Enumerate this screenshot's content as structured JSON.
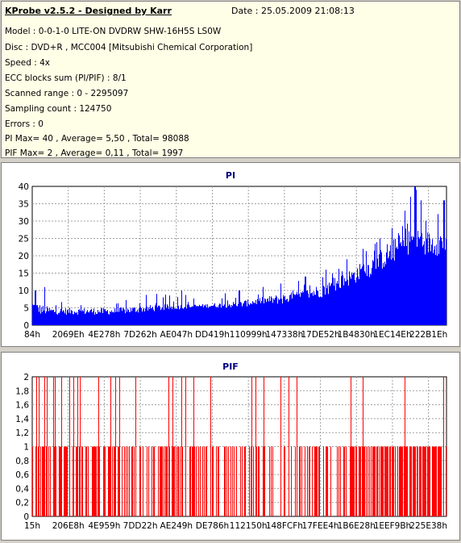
{
  "header": {
    "title": "KProbe v2.5.2 - Designed by Karr",
    "date": "Date : 25.05.2009 21:08:13",
    "lines": [
      "Model : 0-0-1-0 LITE-ON DVDRW SHW-16H5S  LS0W",
      "Disc : DVD+R , MCC004 [Mitsubishi Chemical Corporation]",
      "Speed : 4x",
      "ECC blocks sum (PI/PIF) : 8/1",
      "Scanned range : 0 - 2295097",
      "Sampling count : 124750",
      "Errors : 0",
      "PI Max= 40 , Average= 5,50 , Total= 98088",
      "PIF Max= 2 , Average= 0,11 , Total= 1997"
    ]
  },
  "chart_data": [
    {
      "type": "bar",
      "title": "PI",
      "color": "#0000ff",
      "ylim": [
        0,
        40
      ],
      "yticks": [
        "0",
        "5",
        "10",
        "15",
        "20",
        "25",
        "30",
        "35",
        "40"
      ],
      "yvalues": [
        0,
        5,
        10,
        15,
        20,
        25,
        30,
        35,
        40
      ],
      "xticks": [
        "84h",
        "2069Eh",
        "4E278h",
        "7D262h",
        "AE047h",
        "DD419h",
        "110999h",
        "147338h",
        "17DE52h",
        "1B4830h",
        "1EC14Eh",
        "222B1Eh"
      ],
      "grid": true,
      "envelope": [
        [
          0,
          7,
          4
        ],
        [
          0.02,
          6,
          3
        ],
        [
          0.05,
          5,
          3
        ],
        [
          0.1,
          5,
          3
        ],
        [
          0.2,
          5,
          3
        ],
        [
          0.3,
          6,
          4
        ],
        [
          0.4,
          6,
          5
        ],
        [
          0.5,
          7,
          5
        ],
        [
          0.55,
          8,
          6
        ],
        [
          0.6,
          9,
          6
        ],
        [
          0.65,
          10,
          7
        ],
        [
          0.7,
          12,
          8
        ],
        [
          0.74,
          14,
          10
        ],
        [
          0.78,
          17,
          12
        ],
        [
          0.82,
          20,
          14
        ],
        [
          0.86,
          24,
          17
        ],
        [
          0.9,
          27,
          20
        ],
        [
          0.93,
          29,
          21
        ],
        [
          0.96,
          27,
          20
        ],
        [
          1.0,
          28,
          20
        ]
      ],
      "peaks": [
        [
          0.03,
          11
        ],
        [
          0.007,
          10
        ],
        [
          0.3,
          9
        ],
        [
          0.36,
          10
        ],
        [
          0.5,
          10
        ],
        [
          0.6,
          12
        ],
        [
          0.66,
          14
        ],
        [
          0.71,
          16
        ],
        [
          0.76,
          19
        ],
        [
          0.8,
          22
        ],
        [
          0.84,
          25
        ],
        [
          0.87,
          28
        ],
        [
          0.9,
          33
        ],
        [
          0.915,
          37
        ],
        [
          0.925,
          40
        ],
        [
          0.928,
          39
        ],
        [
          0.94,
          36
        ],
        [
          0.98,
          32
        ],
        [
          0.995,
          36
        ]
      ]
    },
    {
      "type": "bar",
      "title": "PIF",
      "color": "#ff0000",
      "ylim": [
        0,
        2
      ],
      "yticks": [
        "0",
        "0,2",
        "0,4",
        "0,6",
        "0,8",
        "1",
        "1,2",
        "1,4",
        "1,6",
        "1,8",
        "2"
      ],
      "yvalues": [
        0,
        0.2,
        0.4,
        0.6,
        0.8,
        1,
        1.2,
        1.4,
        1.6,
        1.8,
        2
      ],
      "xticks": [
        "15h",
        "206E8h",
        "4E959h",
        "7DD22h",
        "AE249h",
        "DE786h",
        "112150h",
        "148FCFh",
        "17FEE4h",
        "1B6E28h",
        "1EEF9Bh",
        "225E38h"
      ],
      "grid": true,
      "density": [
        [
          0.0,
          0.6
        ],
        [
          0.1,
          0.5
        ],
        [
          0.2,
          0.45
        ],
        [
          0.3,
          0.4
        ],
        [
          0.4,
          0.4
        ],
        [
          0.5,
          0.35
        ],
        [
          0.6,
          0.35
        ],
        [
          0.7,
          0.45
        ],
        [
          0.8,
          0.55
        ],
        [
          0.85,
          0.7
        ],
        [
          0.9,
          0.75
        ],
        [
          0.95,
          0.75
        ],
        [
          1.0,
          0.75
        ]
      ],
      "twos": [
        0.01,
        0.015,
        0.03,
        0.035,
        0.05,
        0.055,
        0.07,
        0.09,
        0.1,
        0.11,
        0.115,
        0.16,
        0.19,
        0.2,
        0.21,
        0.25,
        0.33,
        0.34,
        0.36,
        0.37,
        0.39,
        0.43,
        0.53,
        0.54,
        0.56,
        0.6,
        0.62,
        0.64,
        0.77,
        0.8,
        0.9,
        0.995
      ]
    }
  ]
}
